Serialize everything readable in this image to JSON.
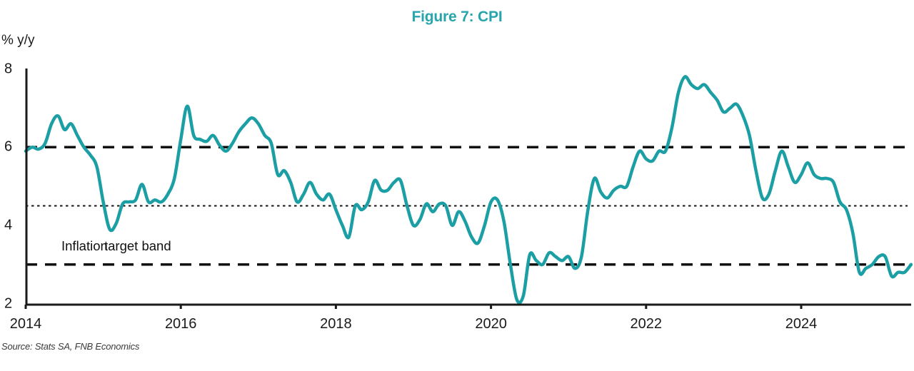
{
  "title": "Figure 7: CPI",
  "y_axis_unit": "% y/y",
  "source": "Source: Stats SA, FNB Economics",
  "annotation": {
    "full": "Inflation target band",
    "part1": "Inflation",
    "part2": "target band"
  },
  "colors": {
    "accent": "#27a5ac",
    "line": "#1c9fa4",
    "axis": "#1a1a1a",
    "reference": "#111111"
  },
  "chart_data": {
    "type": "line",
    "title": "Figure 7: CPI",
    "xlabel": "",
    "ylabel": "% y/y",
    "ylim": [
      2,
      8
    ],
    "y_ticks": [
      8,
      6,
      4,
      2
    ],
    "x_ticks": [
      2014,
      2016,
      2018,
      2020,
      2022,
      2024
    ],
    "x_start": "2014-01",
    "x_end": "2025-06",
    "grid": false,
    "legend": false,
    "reference_lines": [
      {
        "value": 6.0,
        "style": "dashed",
        "label": "inflation target band upper bound"
      },
      {
        "value": 4.5,
        "style": "dotted",
        "label": "inflation target midpoint"
      },
      {
        "value": 3.0,
        "style": "dashed",
        "label": "inflation target band lower bound"
      }
    ],
    "annotation": "Inflation target band",
    "series": [
      {
        "name": "CPI",
        "unit": "% y/y",
        "frequency": "monthly",
        "color": "#1c9fa4",
        "values_by_year": {
          "2014": [
            5.9,
            6.0,
            5.95,
            6.1,
            6.6,
            6.8,
            6.45,
            6.6,
            6.3,
            6.0,
            5.8,
            5.5
          ],
          "2015": [
            4.6,
            3.9,
            4.05,
            4.55,
            4.6,
            4.65,
            5.05,
            4.6,
            4.65,
            4.6,
            4.8,
            5.2
          ],
          "2016": [
            6.2,
            7.05,
            6.3,
            6.2,
            6.15,
            6.3,
            6.05,
            5.9,
            6.1,
            6.4,
            6.6,
            6.75
          ],
          "2017": [
            6.6,
            6.3,
            6.1,
            5.3,
            5.4,
            5.1,
            4.6,
            4.8,
            5.1,
            4.8,
            4.65,
            4.8
          ],
          "2018": [
            4.4,
            4.0,
            3.7,
            4.5,
            4.4,
            4.6,
            5.15,
            4.9,
            4.9,
            5.1,
            5.15,
            4.5
          ],
          "2019": [
            4.0,
            4.15,
            4.55,
            4.35,
            4.55,
            4.5,
            4.0,
            4.35,
            4.1,
            3.7,
            3.55,
            4.0
          ],
          "2020": [
            4.6,
            4.65,
            4.1,
            3.0,
            2.1,
            2.2,
            3.25,
            3.1,
            3.0,
            3.3,
            3.2,
            3.1
          ],
          "2021": [
            3.2,
            2.9,
            3.2,
            4.4,
            5.2,
            4.85,
            4.7,
            4.9,
            5.0,
            5.0,
            5.5,
            5.9
          ],
          "2022": [
            5.7,
            5.65,
            5.9,
            5.9,
            6.5,
            7.4,
            7.8,
            7.6,
            7.5,
            7.6,
            7.4,
            7.2
          ],
          "2023": [
            6.9,
            7.0,
            7.1,
            6.8,
            6.3,
            5.4,
            4.7,
            4.8,
            5.4,
            5.9,
            5.5,
            5.1
          ],
          "2024": [
            5.3,
            5.6,
            5.3,
            5.2,
            5.2,
            5.1,
            4.6,
            4.4,
            3.8,
            2.8,
            2.9,
            3.0
          ],
          "2025": [
            3.2,
            3.2,
            2.7,
            2.8,
            2.8,
            3.0
          ]
        }
      }
    ]
  }
}
